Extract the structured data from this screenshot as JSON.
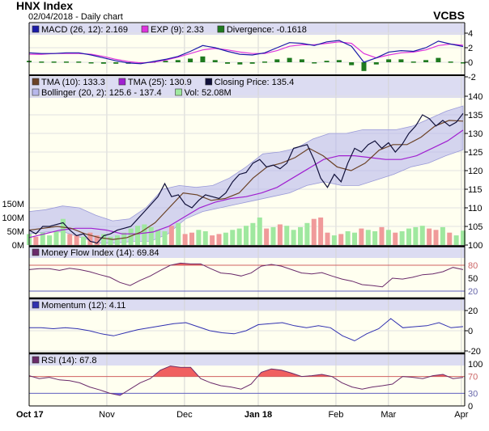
{
  "header": {
    "title": "HNX Index",
    "subtitle": "02/04/2018 - Daily chart",
    "brand": "VCBS"
  },
  "colors": {
    "plot_bg": "#fffff0",
    "legend_bg": "#dcdcf2",
    "macd": "#1a1aa8",
    "exp": "#dd33dd",
    "divergence": "#1f7a1f",
    "tma10": "#6b4226",
    "tma25": "#a020d0",
    "close": "#10103a",
    "bollinger": "#b8b8ec",
    "vol_up": "#9fe89f",
    "vol_down": "#f09a9a",
    "overbought": "#f06060",
    "oversold": "#7a6af0",
    "mfi": "#6a2a6a",
    "momentum": "#3030b0",
    "rsi": "#6a2a6a"
  },
  "x_axis": {
    "labels": [
      {
        "text": "Oct 17",
        "bold": true,
        "pos": 0
      },
      {
        "text": "Nov",
        "bold": false,
        "pos": 0.179
      },
      {
        "text": "Dec",
        "bold": false,
        "pos": 0.358
      },
      {
        "text": "Jan 18",
        "bold": true,
        "pos": 0.528
      },
      {
        "text": "Feb",
        "bold": false,
        "pos": 0.707
      },
      {
        "text": "Mar",
        "bold": false,
        "pos": 0.828
      },
      {
        "text": "Apr",
        "bold": false,
        "pos": 0.996
      }
    ]
  },
  "chart_data": [
    {
      "type": "line",
      "panel": "MACD",
      "legend": [
        "MACD (26, 12): 2.169",
        "EXP (9): 2.33",
        "Divergence: -0.1618"
      ],
      "yticks": [
        "4",
        "2",
        "0",
        "-2"
      ],
      "ylim": [
        -2,
        4
      ],
      "series": [
        {
          "name": "MACD (26, 12)",
          "values": [
            1.3,
            1.2,
            1.2,
            1.3,
            1.3,
            1.0,
            0.6,
            0.2,
            -0.1,
            -0.2,
            0.1,
            0.4,
            0.8,
            1.5,
            2.3,
            2.0,
            1.5,
            1.1,
            1.0,
            1.3,
            2.0,
            2.7,
            2.6,
            2.3,
            2.8,
            3.0,
            2.2,
            0.0,
            0.6,
            1.4,
            1.6,
            1.5,
            2.0,
            2.9,
            2.5,
            2.169
          ]
        },
        {
          "name": "EXP (9)",
          "values": [
            1.1,
            1.1,
            1.2,
            1.2,
            1.2,
            1.1,
            0.8,
            0.4,
            0.1,
            -0.1,
            0.0,
            0.3,
            0.7,
            1.2,
            1.7,
            1.9,
            1.7,
            1.4,
            1.2,
            1.2,
            1.6,
            2.2,
            2.4,
            2.4,
            2.6,
            2.8,
            2.6,
            1.2,
            0.6,
            1.0,
            1.3,
            1.4,
            1.7,
            2.3,
            2.5,
            2.33
          ]
        },
        {
          "name": "Divergence",
          "values": [
            0.2,
            0.1,
            0.1,
            0.1,
            0.1,
            -0.1,
            -0.2,
            -0.2,
            -0.2,
            -0.1,
            0.1,
            0.2,
            0.3,
            0.5,
            0.8,
            0.3,
            -0.2,
            -0.3,
            -0.2,
            0.1,
            0.4,
            0.6,
            0.4,
            -0.1,
            0.2,
            0.3,
            -0.4,
            -1.2,
            -0.3,
            0.4,
            0.4,
            0.1,
            0.3,
            0.6,
            0.1,
            -0.1618
          ]
        }
      ]
    },
    {
      "type": "line",
      "panel": "Price",
      "legend": [
        "TMA (10): 133.3",
        "TMA (25): 130.9",
        "Closing Price: 135.4",
        "Bollinger (20, 2): 125.6 - 137.4",
        "Vol: 52.08M"
      ],
      "yticks": [
        "140",
        "135",
        "130",
        "125",
        "120",
        "115",
        "110",
        "105",
        "100"
      ],
      "ylim": [
        100,
        140
      ],
      "vol_ticks": [
        "150M",
        "100M",
        "50M",
        "0M"
      ],
      "series": [
        {
          "name": "Closing Price",
          "values": [
            104,
            103,
            105,
            105,
            105.5,
            106,
            104,
            102.5,
            103,
            101,
            100.5,
            102.5,
            103,
            104,
            104.5,
            105,
            107,
            109,
            111,
            113,
            116.5,
            113,
            113.5,
            111,
            110,
            112,
            113.5,
            113,
            112.5,
            114,
            117,
            119,
            119.5,
            122,
            123,
            121,
            121.5,
            120.5,
            122,
            126,
            126.5,
            127,
            123,
            118,
            115.5,
            119,
            117,
            122,
            126,
            125,
            127,
            128,
            126,
            127.5,
            125,
            127,
            130,
            132,
            135,
            134,
            132,
            133.5,
            132,
            133,
            135.4
          ]
        },
        {
          "name": "TMA (10)",
          "values": [
            104,
            104.5,
            105,
            104.5,
            103,
            102,
            101.5,
            102,
            103.5,
            106,
            110,
            114,
            113.5,
            112,
            112.5,
            114,
            118,
            121,
            122,
            123.5,
            126,
            124,
            121,
            120,
            122,
            125.5,
            127,
            127,
            129,
            132,
            133.5,
            133.3
          ]
        },
        {
          "name": "TMA (25)",
          "values": [
            102,
            103,
            104,
            104.5,
            104.5,
            104,
            103,
            103,
            103.5,
            105,
            107.5,
            110,
            111.5,
            112.5,
            113,
            114,
            115.5,
            118,
            120.5,
            123,
            124,
            124,
            123.5,
            123,
            123,
            124,
            126,
            128,
            130.9
          ]
        },
        {
          "name": "Bollinger upper",
          "values": [
            109,
            109.5,
            110.5,
            110,
            108,
            106.5,
            107,
            110,
            115,
            116,
            115.5,
            116,
            118,
            121,
            124.5,
            125,
            126,
            128.5,
            130,
            130,
            131,
            131,
            131,
            132,
            134,
            136,
            137.4
          ]
        },
        {
          "name": "Bollinger lower",
          "values": [
            103,
            103.5,
            103.5,
            102,
            100.5,
            100.5,
            101,
            101,
            103,
            107,
            109,
            110,
            111,
            112,
            113,
            114,
            116,
            117,
            116,
            116,
            117.5,
            119,
            121,
            122,
            124,
            125.6
          ]
        },
        {
          "name": "Vol",
          "unit": "M",
          "values": [
            40,
            30,
            45,
            35,
            50,
            95,
            40,
            35,
            30,
            45,
            35,
            40,
            30,
            35,
            45,
            60,
            70,
            75,
            65,
            55,
            50,
            70,
            80,
            40,
            45,
            55,
            50,
            35,
            40,
            45,
            55,
            60,
            70,
            80,
            100,
            60,
            65,
            75,
            70,
            55,
            65,
            80,
            95,
            100,
            45,
            35,
            40,
            50,
            45,
            60,
            55,
            50,
            65,
            55,
            45,
            50,
            60,
            65,
            70,
            60,
            55,
            65,
            45,
            35,
            52.08
          ]
        }
      ]
    },
    {
      "type": "line",
      "panel": "Money Flow Index",
      "legend": [
        "Money Flow Index (14): 69.84"
      ],
      "yticks": [
        "80",
        "50",
        "20"
      ],
      "thresholds": [
        80,
        20
      ],
      "series": [
        {
          "name": "Money Flow Index (14)",
          "values": [
            70,
            72,
            72,
            68,
            73,
            70,
            65,
            58,
            52,
            40,
            33,
            45,
            55,
            68,
            80,
            85,
            83,
            83,
            72,
            62,
            60,
            55,
            62,
            78,
            82,
            78,
            70,
            62,
            60,
            63,
            55,
            48,
            43,
            35,
            33,
            30,
            50,
            48,
            52,
            58,
            60,
            65,
            75,
            69.84
          ]
        }
      ]
    },
    {
      "type": "line",
      "panel": "Momentum",
      "legend": [
        "Momentum (12): 4.11"
      ],
      "yticks": [
        "20",
        "0",
        "-20"
      ],
      "ylim": [
        -20,
        20
      ],
      "series": [
        {
          "name": "Momentum (12)",
          "values": [
            3,
            3,
            2,
            3,
            2,
            0,
            -3,
            -5,
            -2,
            1,
            3,
            5,
            7,
            8,
            4,
            0,
            -2,
            -3,
            0,
            6,
            7,
            8,
            5,
            3,
            5,
            3,
            -5,
            -10,
            -3,
            2,
            12,
            3,
            4,
            5,
            8,
            3,
            4.11
          ]
        }
      ]
    },
    {
      "type": "line",
      "panel": "RSI",
      "legend": [
        "RSI (14): 67.8"
      ],
      "yticks": [
        "100",
        "70",
        "30",
        "0"
      ],
      "thresholds": [
        70,
        30
      ],
      "series": [
        {
          "name": "RSI (14)",
          "values": [
            72,
            65,
            68,
            62,
            60,
            55,
            45,
            38,
            30,
            25,
            40,
            55,
            65,
            85,
            95,
            92,
            92,
            65,
            55,
            48,
            45,
            40,
            52,
            80,
            88,
            85,
            78,
            70,
            72,
            75,
            70,
            55,
            45,
            40,
            45,
            48,
            52,
            70,
            68,
            65,
            72,
            75,
            65,
            67.8
          ]
        }
      ]
    }
  ]
}
